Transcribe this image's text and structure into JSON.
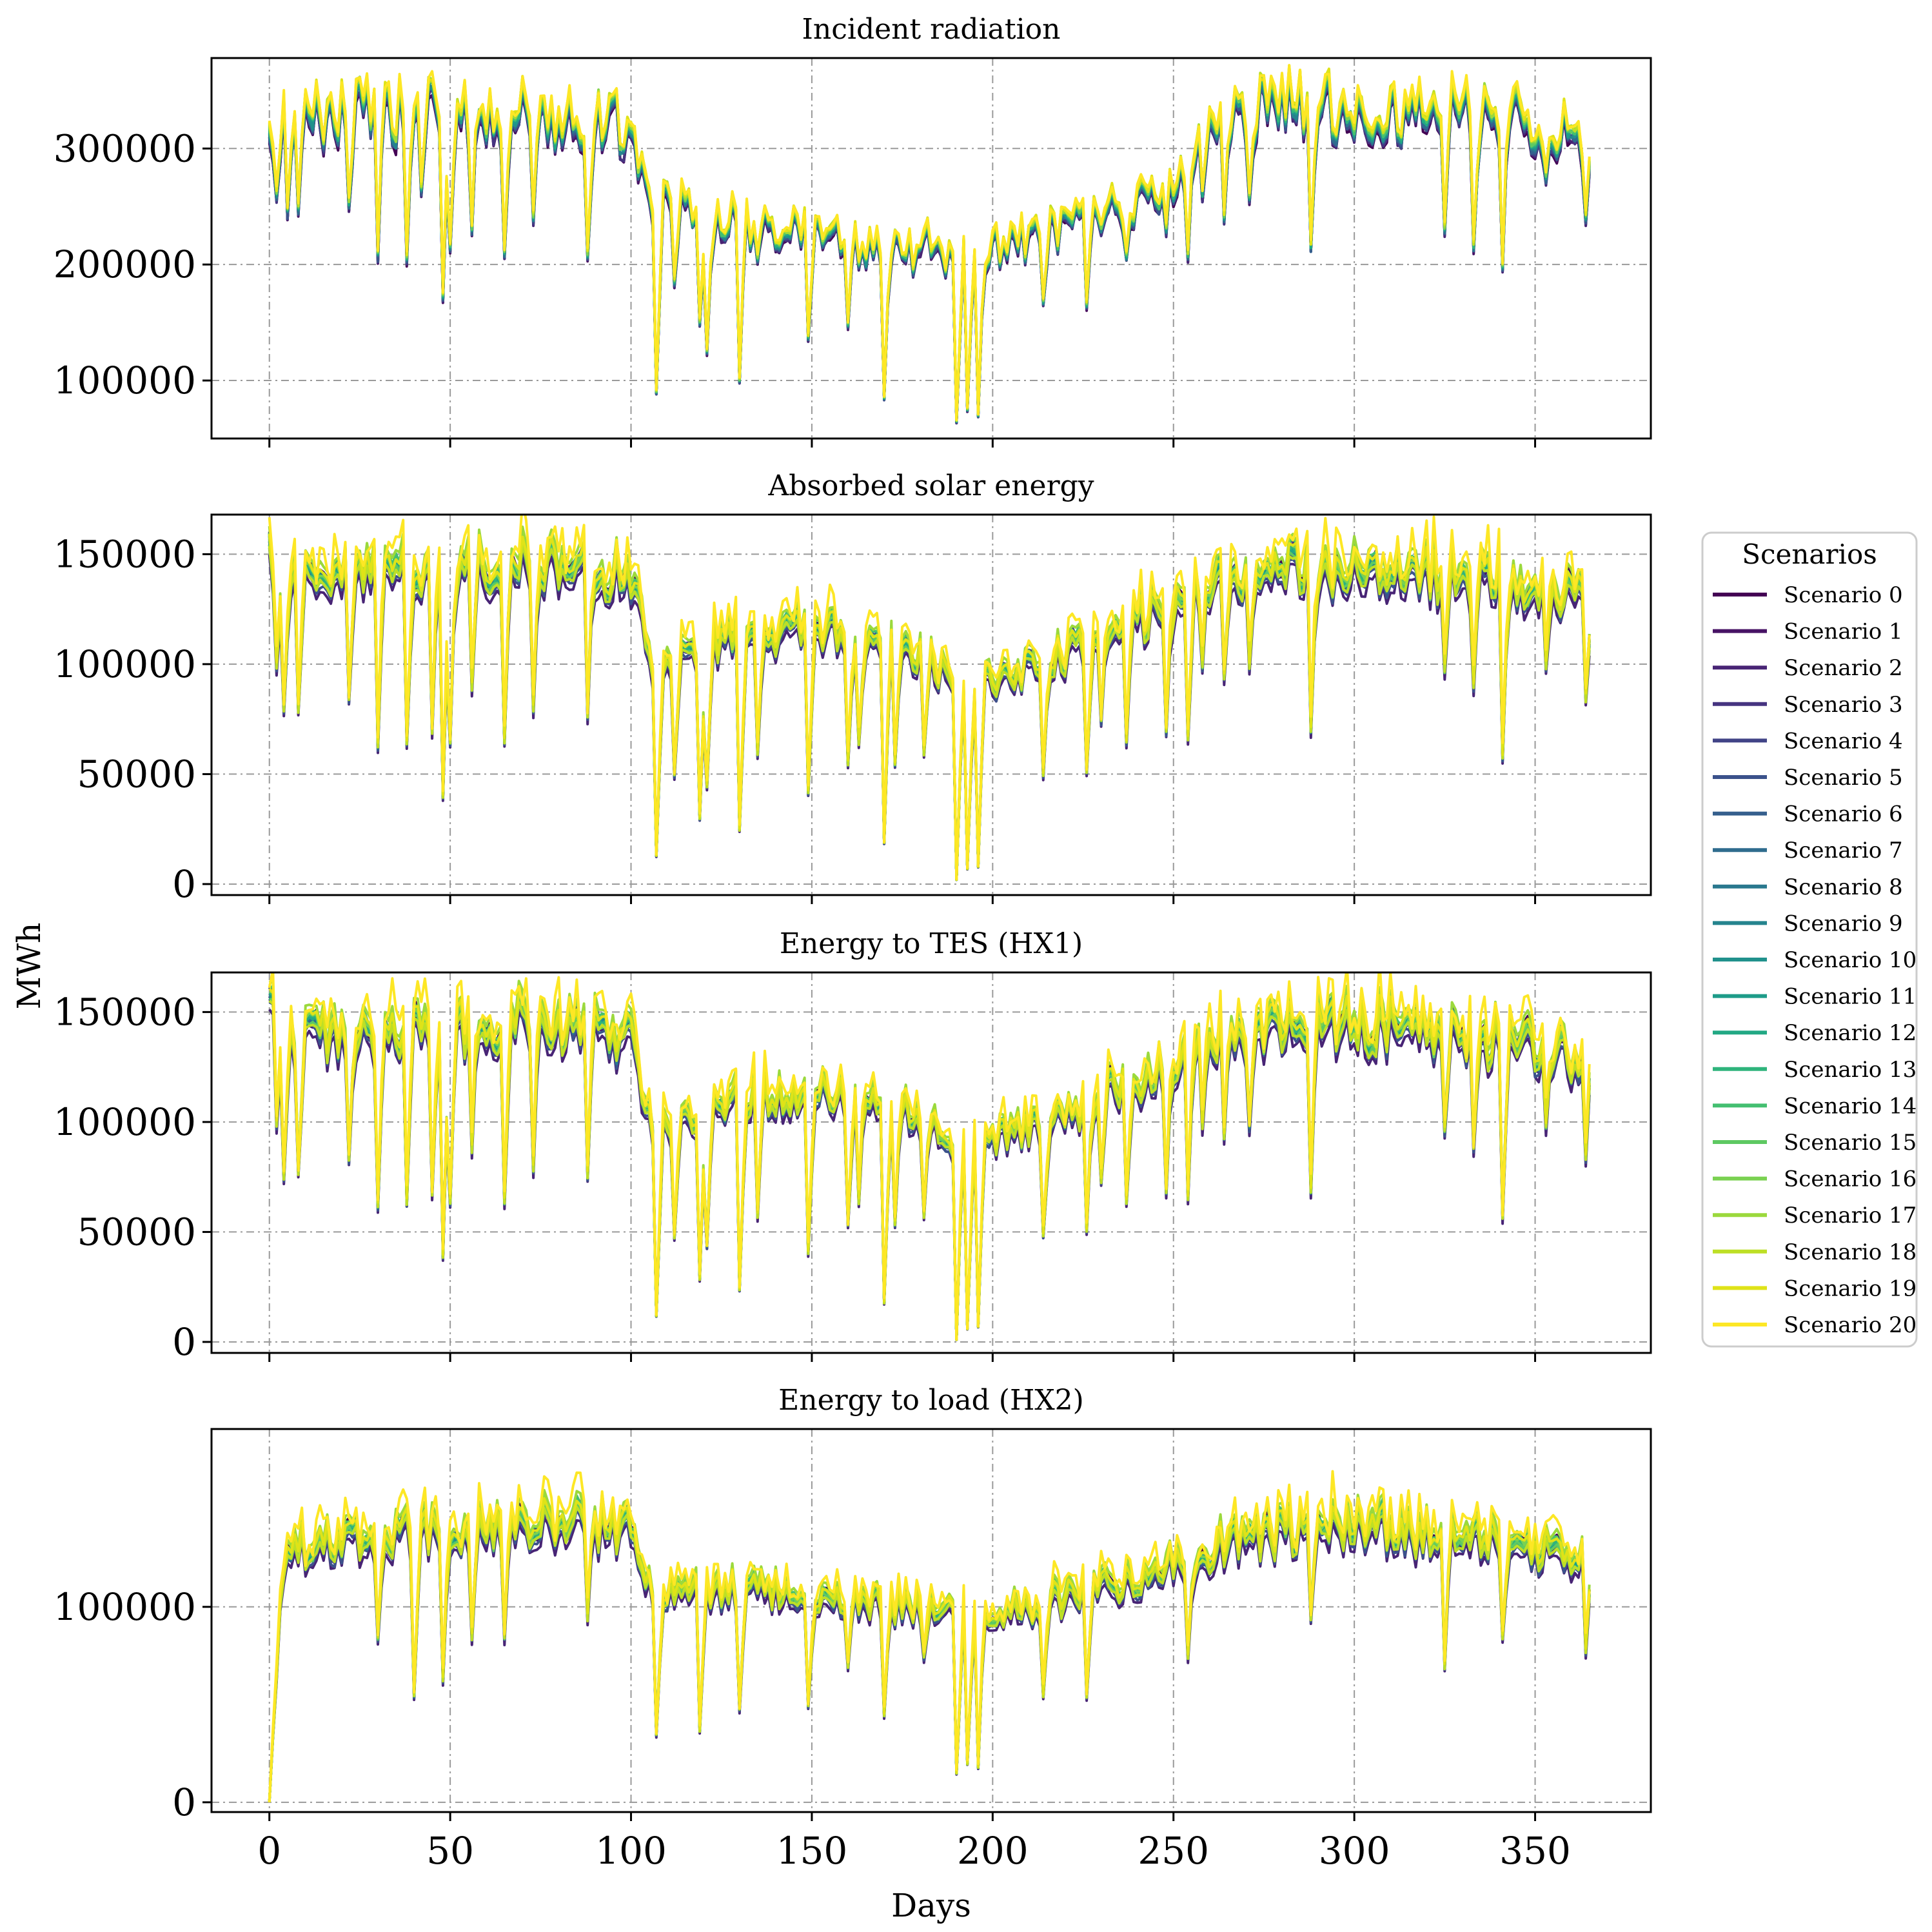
{
  "colors": {
    "scenario_palette": [
      "#440154",
      "#471365",
      "#482475",
      "#463480",
      "#414487",
      "#3b528b",
      "#355f8d",
      "#2f6c8e",
      "#2a788e",
      "#25848e",
      "#21918c",
      "#1e9c89",
      "#22a884",
      "#2fb47c",
      "#44bf70",
      "#5ec962",
      "#7ad151",
      "#9bd93c",
      "#bddf26",
      "#dfe318",
      "#fde725"
    ],
    "grid": "#9a9a9a",
    "frame": "#000000",
    "legend_border": "#cccccc"
  },
  "chart_data": {
    "type": "line",
    "shared_x": {
      "label": "Days",
      "lim": [
        -16,
        382
      ],
      "ticks": [
        0,
        50,
        100,
        150,
        200,
        250,
        300,
        350
      ],
      "tick_labels": [
        "0",
        "50",
        "100",
        "150",
        "200",
        "250",
        "300",
        "350"
      ]
    },
    "shared_y_label": "MWh",
    "legend": {
      "title": "Scenarios",
      "placement": "right",
      "entries": [
        "Scenario 0",
        "Scenario 1",
        "Scenario 2",
        "Scenario 3",
        "Scenario 4",
        "Scenario 5",
        "Scenario 6",
        "Scenario 7",
        "Scenario 8",
        "Scenario 9",
        "Scenario 10",
        "Scenario 11",
        "Scenario 12",
        "Scenario 13",
        "Scenario 14",
        "Scenario 15",
        "Scenario 16",
        "Scenario 17",
        "Scenario 18",
        "Scenario 19",
        "Scenario 20"
      ]
    },
    "panels": [
      {
        "title": "Incident radiation",
        "ylim": [
          50000,
          378000
        ],
        "yticks": [
          100000,
          200000,
          300000
        ],
        "ytick_labels": [
          "100000",
          "200000",
          "300000"
        ],
        "seasonal_profile": [
          [
            0,
            300000
          ],
          [
            5,
            325000
          ],
          [
            20,
            330000
          ],
          [
            60,
            330000
          ],
          [
            70,
            332000
          ],
          [
            100,
            318000
          ],
          [
            106,
            255000
          ],
          [
            130,
            235000
          ],
          [
            150,
            225000
          ],
          [
            175,
            210000
          ],
          [
            192,
            205000
          ],
          [
            210,
            222000
          ],
          [
            240,
            250000
          ],
          [
            255,
            290000
          ],
          [
            262,
            325000
          ],
          [
            285,
            340000
          ],
          [
            300,
            332000
          ],
          [
            330,
            330000
          ],
          [
            350,
            325000
          ],
          [
            365,
            300000
          ]
        ],
        "scenario_spread": 0.045,
        "dips": [
          [
            2,
            260000
          ],
          [
            5,
            245000
          ],
          [
            8,
            248000
          ],
          [
            22,
            252000
          ],
          [
            30,
            207000
          ],
          [
            38,
            205000
          ],
          [
            42,
            265000
          ],
          [
            48,
            172000
          ],
          [
            50,
            215000
          ],
          [
            56,
            230000
          ],
          [
            65,
            210000
          ],
          [
            73,
            240000
          ],
          [
            88,
            208000
          ],
          [
            107,
            90000
          ],
          [
            112,
            185000
          ],
          [
            119,
            150000
          ],
          [
            121,
            125000
          ],
          [
            130,
            100000
          ],
          [
            135,
            205000
          ],
          [
            149,
            137000
          ],
          [
            160,
            148000
          ],
          [
            163,
            200000
          ],
          [
            170,
            85000
          ],
          [
            173,
            225000
          ],
          [
            181,
            225000
          ],
          [
            190,
            65000
          ],
          [
            193,
            75000
          ],
          [
            196,
            70000
          ],
          [
            214,
            168000
          ],
          [
            226,
            165000
          ],
          [
            230,
            230000
          ],
          [
            237,
            207000
          ],
          [
            248,
            230000
          ],
          [
            254,
            207000
          ],
          [
            258,
            260000
          ],
          [
            264,
            240000
          ],
          [
            271,
            258000
          ],
          [
            288,
            215000
          ],
          [
            325,
            230000
          ],
          [
            333,
            215000
          ],
          [
            341,
            198000
          ],
          [
            353,
            275000
          ],
          [
            364,
            240000
          ]
        ]
      },
      {
        "title": "Absorbed solar energy",
        "ylim": [
          -5000,
          168000
        ],
        "yticks": [
          0,
          50000,
          100000,
          150000
        ],
        "ytick_labels": [
          "0",
          "50000",
          "100000",
          "150000"
        ],
        "seasonal_profile": [
          [
            0,
            150000
          ],
          [
            5,
            135000
          ],
          [
            20,
            142000
          ],
          [
            60,
            145000
          ],
          [
            70,
            148000
          ],
          [
            100,
            140000
          ],
          [
            106,
            100000
          ],
          [
            130,
            112000
          ],
          [
            150,
            115000
          ],
          [
            175,
            110000
          ],
          [
            192,
            90000
          ],
          [
            210,
            97000
          ],
          [
            240,
            120000
          ],
          [
            255,
            130000
          ],
          [
            262,
            140000
          ],
          [
            285,
            142000
          ],
          [
            300,
            145000
          ],
          [
            330,
            140000
          ],
          [
            350,
            135000
          ],
          [
            365,
            128000
          ]
        ],
        "scenario_spread": 0.09,
        "dips": [
          [
            2,
            100000
          ],
          [
            4,
            80000
          ],
          [
            8,
            80000
          ],
          [
            22,
            85000
          ],
          [
            30,
            63000
          ],
          [
            38,
            65000
          ],
          [
            45,
            70000
          ],
          [
            48,
            40000
          ],
          [
            50,
            65000
          ],
          [
            56,
            90000
          ],
          [
            65,
            65000
          ],
          [
            73,
            80000
          ],
          [
            88,
            77000
          ],
          [
            107,
            13000
          ],
          [
            112,
            50000
          ],
          [
            119,
            30000
          ],
          [
            121,
            45000
          ],
          [
            130,
            25000
          ],
          [
            135,
            60000
          ],
          [
            149,
            42000
          ],
          [
            160,
            55000
          ],
          [
            163,
            65000
          ],
          [
            170,
            19000
          ],
          [
            173,
            55000
          ],
          [
            181,
            60000
          ],
          [
            190,
            2000
          ],
          [
            193,
            7000
          ],
          [
            196,
            8000
          ],
          [
            214,
            50000
          ],
          [
            226,
            52000
          ],
          [
            230,
            75000
          ],
          [
            237,
            65000
          ],
          [
            248,
            70000
          ],
          [
            254,
            67000
          ],
          [
            258,
            100000
          ],
          [
            264,
            95000
          ],
          [
            271,
            100000
          ],
          [
            288,
            70000
          ],
          [
            325,
            98000
          ],
          [
            333,
            90000
          ],
          [
            341,
            58000
          ],
          [
            353,
            100000
          ],
          [
            364,
            85000
          ]
        ]
      },
      {
        "title": "Energy to TES (HX1)",
        "ylim": [
          -5000,
          168000
        ],
        "yticks": [
          0,
          50000,
          100000,
          150000
        ],
        "ytick_labels": [
          "0",
          "50000",
          "100000",
          "150000"
        ],
        "seasonal_profile": [
          [
            0,
            150000
          ],
          [
            5,
            134000
          ],
          [
            20,
            141000
          ],
          [
            60,
            144000
          ],
          [
            70,
            147000
          ],
          [
            100,
            139000
          ],
          [
            106,
            99000
          ],
          [
            130,
            111000
          ],
          [
            150,
            114000
          ],
          [
            175,
            109000
          ],
          [
            192,
            89000
          ],
          [
            210,
            96000
          ],
          [
            240,
            119000
          ],
          [
            255,
            129000
          ],
          [
            262,
            139000
          ],
          [
            285,
            141000
          ],
          [
            300,
            144000
          ],
          [
            330,
            139000
          ],
          [
            350,
            134000
          ],
          [
            365,
            127000
          ]
        ],
        "scenario_spread": 0.09,
        "dips": [
          [
            2,
            100000
          ],
          [
            4,
            75000
          ],
          [
            8,
            78000
          ],
          [
            22,
            84000
          ],
          [
            30,
            62000
          ],
          [
            38,
            64000
          ],
          [
            45,
            68000
          ],
          [
            48,
            39000
          ],
          [
            50,
            64000
          ],
          [
            56,
            88000
          ],
          [
            65,
            64000
          ],
          [
            73,
            79000
          ],
          [
            88,
            76000
          ],
          [
            107,
            12000
          ],
          [
            112,
            48000
          ],
          [
            119,
            29000
          ],
          [
            121,
            44000
          ],
          [
            130,
            24000
          ],
          [
            135,
            58000
          ],
          [
            149,
            41000
          ],
          [
            160,
            54000
          ],
          [
            163,
            64000
          ],
          [
            170,
            18000
          ],
          [
            173,
            54000
          ],
          [
            181,
            58000
          ],
          [
            190,
            1000
          ],
          [
            193,
            6000
          ],
          [
            196,
            7000
          ],
          [
            214,
            49000
          ],
          [
            226,
            51000
          ],
          [
            230,
            74000
          ],
          [
            237,
            64000
          ],
          [
            248,
            69000
          ],
          [
            254,
            66000
          ],
          [
            258,
            99000
          ],
          [
            264,
            94000
          ],
          [
            271,
            99000
          ],
          [
            288,
            69000
          ],
          [
            325,
            97000
          ],
          [
            333,
            89000
          ],
          [
            341,
            57000
          ],
          [
            353,
            99000
          ],
          [
            364,
            84000
          ]
        ]
      },
      {
        "title": "Energy to load (HX2)",
        "ylim": [
          -5000,
          191000
        ],
        "yticks": [
          0,
          100000
        ],
        "ytick_labels": [
          "0",
          "100000"
        ],
        "seasonal_profile": [
          [
            0,
            0
          ],
          [
            3,
            100000
          ],
          [
            6,
            130000
          ],
          [
            20,
            135000
          ],
          [
            60,
            140000
          ],
          [
            80,
            145000
          ],
          [
            100,
            138000
          ],
          [
            106,
            110000
          ],
          [
            130,
            108000
          ],
          [
            150,
            106000
          ],
          [
            175,
            100000
          ],
          [
            192,
            95000
          ],
          [
            210,
            100000
          ],
          [
            240,
            115000
          ],
          [
            255,
            125000
          ],
          [
            262,
            130000
          ],
          [
            285,
            138000
          ],
          [
            300,
            142000
          ],
          [
            330,
            135000
          ],
          [
            350,
            130000
          ],
          [
            365,
            120000
          ]
        ],
        "scenario_spread": 0.09,
        "dips": [
          [
            30,
            85000
          ],
          [
            40,
            55000
          ],
          [
            48,
            63000
          ],
          [
            56,
            85000
          ],
          [
            65,
            85000
          ],
          [
            88,
            95000
          ],
          [
            107,
            35000
          ],
          [
            119,
            37000
          ],
          [
            130,
            48000
          ],
          [
            149,
            50000
          ],
          [
            160,
            70000
          ],
          [
            170,
            45000
          ],
          [
            181,
            75000
          ],
          [
            190,
            15000
          ],
          [
            193,
            20000
          ],
          [
            196,
            18000
          ],
          [
            214,
            55000
          ],
          [
            226,
            55000
          ],
          [
            254,
            75000
          ],
          [
            288,
            95000
          ],
          [
            325,
            70000
          ],
          [
            341,
            85000
          ],
          [
            364,
            78000
          ]
        ]
      }
    ]
  }
}
